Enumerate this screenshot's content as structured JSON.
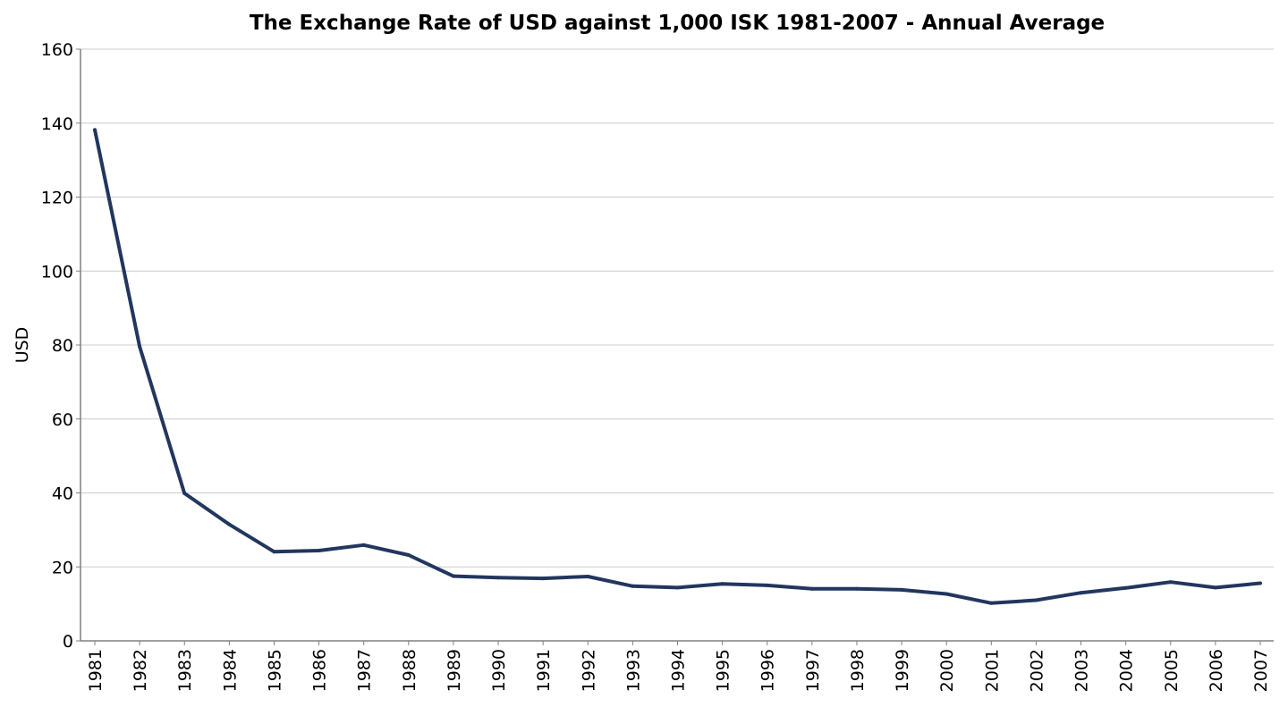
{
  "chart_data": {
    "type": "line",
    "title": "The Exchange Rate of USD against 1,000 ISK 1981-2007 - Annual Average",
    "xlabel": "",
    "ylabel": "USD",
    "ylim": [
      0,
      160
    ],
    "yticks": [
      "0",
      "20",
      "40",
      "60",
      "80",
      "100",
      "120",
      "140",
      "160"
    ],
    "grid": true,
    "legend": "none",
    "line_color": "#22365e",
    "categories": [
      "1981",
      "1982",
      "1983",
      "1984",
      "1985",
      "1986",
      "1987",
      "1988",
      "1989",
      "1990",
      "1991",
      "1992",
      "1993",
      "1994",
      "1995",
      "1996",
      "1997",
      "1998",
      "1999",
      "2000",
      "2001",
      "2002",
      "2003",
      "2004",
      "2005",
      "2006",
      "2007"
    ],
    "series": [
      {
        "values": [
          138.2,
          79.6,
          39.9,
          31.5,
          24.1,
          24.4,
          25.9,
          23.2,
          17.5,
          17.1,
          16.9,
          17.4,
          14.8,
          14.4,
          15.4,
          15.0,
          14.1,
          14.1,
          13.8,
          12.7,
          10.2,
          11.0,
          13.0,
          14.3,
          15.9,
          14.4,
          15.6
        ]
      }
    ]
  }
}
